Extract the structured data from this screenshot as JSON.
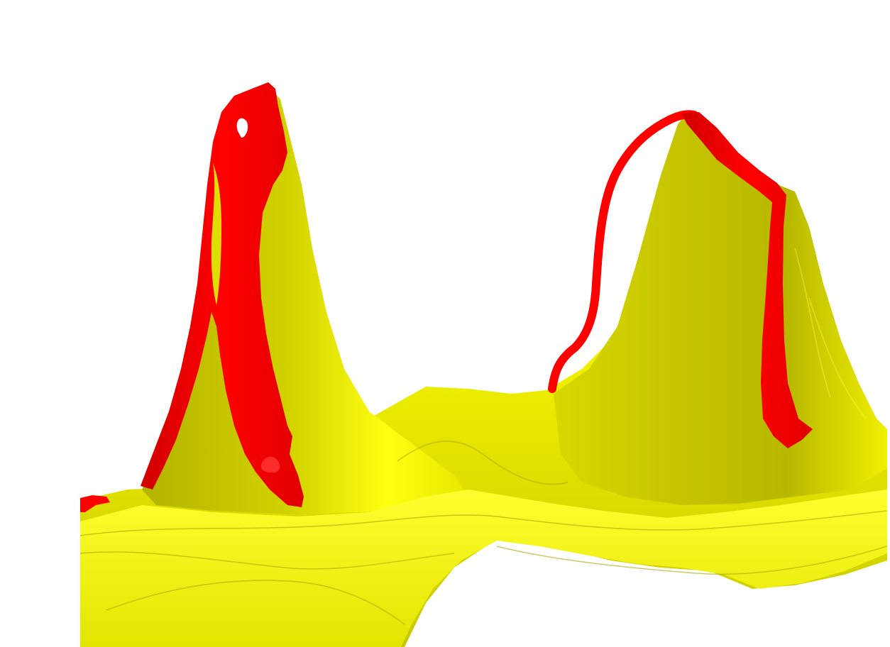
{
  "scene": {
    "colors": {
      "background": "#ffffff",
      "surface_light": "#ffff1e",
      "surface_mid": "#e6e600",
      "surface_shadow": "#bdbd00",
      "surface_dark": "#9f9f00",
      "ribbon": "#ff0000",
      "ribbon_dark": "#c80000"
    },
    "objects": [
      {
        "name": "yellow-surface",
        "color": "yellow"
      },
      {
        "name": "left-peak",
        "color": "yellow"
      },
      {
        "name": "right-peak",
        "color": "yellow"
      },
      {
        "name": "left-red-ribbon",
        "color": "red"
      },
      {
        "name": "right-red-ribbon",
        "color": "red"
      }
    ]
  }
}
